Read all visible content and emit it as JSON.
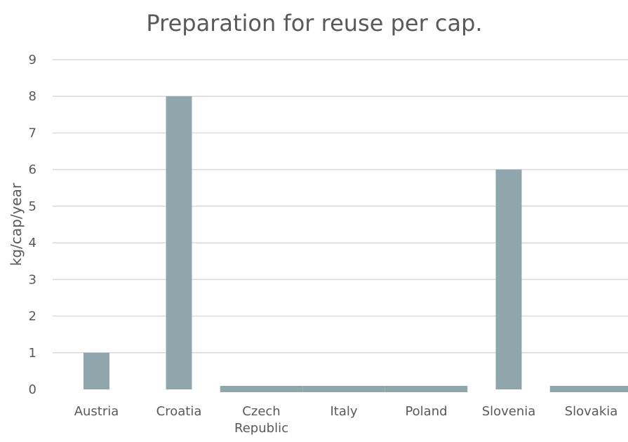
{
  "chart_data": {
    "type": "bar",
    "title": "Preparation for reuse per cap.",
    "xlabel": "",
    "ylabel": "kg/cap/year",
    "categories": [
      "Austria",
      "Croatia",
      "Czech Republic",
      "Italy",
      "Poland",
      "Slovenia",
      "Slovakia"
    ],
    "category_label_lines": [
      [
        "Austria"
      ],
      [
        "Croatia"
      ],
      [
        "Czech",
        "Republic"
      ],
      [
        "Italy"
      ],
      [
        "Poland"
      ],
      [
        "Slovenia"
      ],
      [
        "Slovakia"
      ]
    ],
    "values": [
      1,
      8,
      0,
      0,
      0,
      6,
      0
    ],
    "ylim": [
      0,
      9
    ],
    "yticks": [
      0,
      1,
      2,
      3,
      4,
      5,
      6,
      7,
      8,
      9
    ],
    "grid": true,
    "legend": "none",
    "bar_color": "#8fa7ac"
  }
}
